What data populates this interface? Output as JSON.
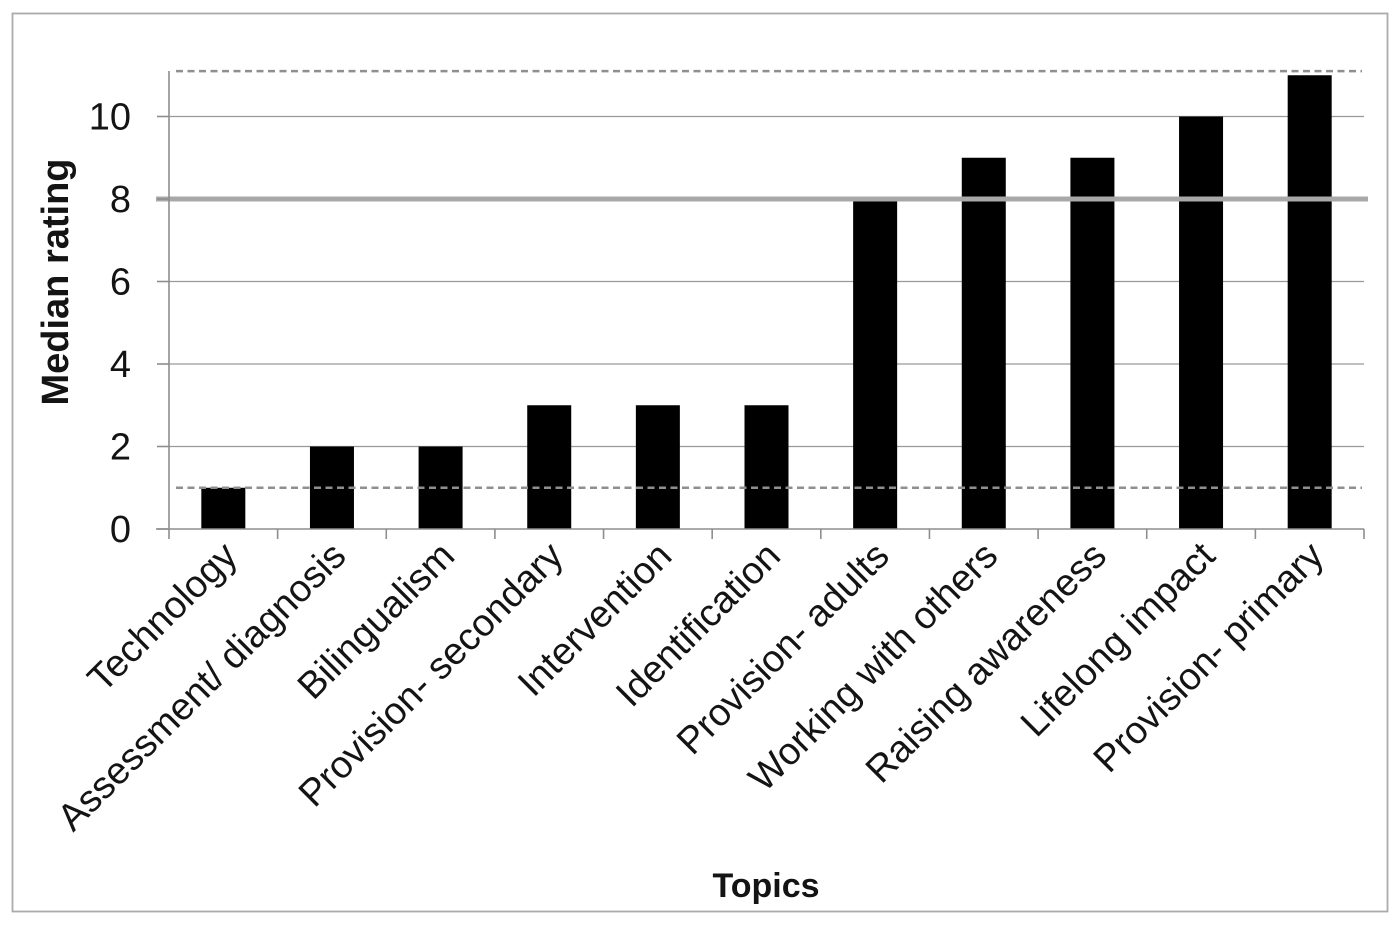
{
  "figure": {
    "background_color": "#ffffff",
    "border_color": "#ababab"
  },
  "chart_data": {
    "type": "bar",
    "title": "",
    "xlabel": "Topics",
    "ylabel": "Median rating",
    "categories": [
      "Technology",
      "Assessment/ diagnosis",
      "Bilingualism",
      "Provision- secondary",
      "Intervention",
      "Identification",
      "Provision- adults",
      "Working with others",
      "Raising awareness",
      "Lifelong impact",
      "Provision- primary"
    ],
    "values": [
      1,
      2,
      2,
      3,
      3,
      3,
      8,
      9,
      9,
      10,
      11
    ],
    "yticks": [
      0,
      2,
      4,
      6,
      8,
      10
    ],
    "ylim": [
      0,
      11.2
    ],
    "grid": "horizontal",
    "legend": "none",
    "bar_color": "#000000",
    "gridline_color": "#999999",
    "axis_color": "#8e8e8e",
    "text_color": "#141414",
    "category_label_rotation_deg": -45,
    "reference_lines": [
      {
        "value": 8,
        "style": "solid",
        "color": "#a8a8a8",
        "width": 5
      },
      {
        "value": 1,
        "style": "dashed",
        "color": "#8f8f8f",
        "width": 2.4
      },
      {
        "value": 11.1,
        "style": "dashed",
        "color": "#8f8f8f",
        "width": 2.4
      }
    ]
  }
}
